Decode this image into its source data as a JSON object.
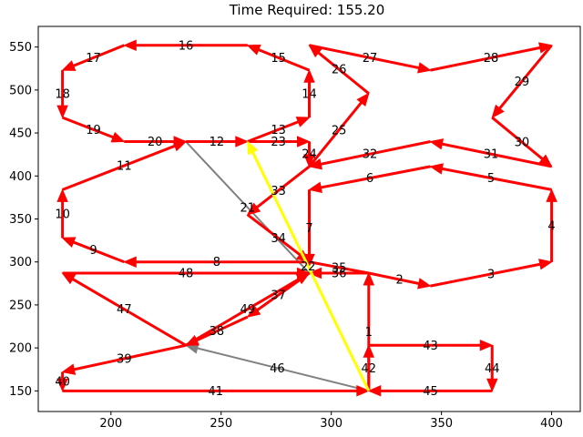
{
  "chart_data": {
    "type": "line",
    "title": "Time Required: 155.20",
    "xlabel": "",
    "ylabel": "",
    "xlim": [
      167,
      413
    ],
    "ylim": [
      126,
      574
    ],
    "xticks": [
      200,
      250,
      300,
      350,
      400
    ],
    "yticks": [
      150,
      200,
      250,
      300,
      350,
      400,
      450,
      500,
      550
    ],
    "grid": false,
    "edges": [
      {
        "label": "1",
        "from": [
          317,
          150
        ],
        "to": [
          317,
          287
        ],
        "color": "#ff0000",
        "arrow": true
      },
      {
        "label": "2",
        "from": [
          317,
          287
        ],
        "to": [
          345,
          272
        ],
        "color": "#ff0000",
        "arrow": true
      },
      {
        "label": "3",
        "from": [
          345,
          272
        ],
        "to": [
          400,
          300
        ],
        "color": "#ff0000",
        "arrow": true
      },
      {
        "label": "4",
        "from": [
          400,
          300
        ],
        "to": [
          400,
          384
        ],
        "color": "#ff0000",
        "arrow": true
      },
      {
        "label": "5",
        "from": [
          400,
          384
        ],
        "to": [
          345,
          411
        ],
        "color": "#ff0000",
        "arrow": true
      },
      {
        "label": "6",
        "from": [
          345,
          411
        ],
        "to": [
          290,
          384
        ],
        "color": "#ff0000",
        "arrow": true
      },
      {
        "label": "7",
        "from": [
          290,
          384
        ],
        "to": [
          290,
          295
        ],
        "color": "#ff0000",
        "arrow": true
      },
      {
        "label": "8",
        "from": [
          290,
          300
        ],
        "to": [
          206,
          300
        ],
        "color": "#ff0000",
        "arrow": true
      },
      {
        "label": "9",
        "from": [
          206,
          300
        ],
        "to": [
          178,
          328
        ],
        "color": "#ff0000",
        "arrow": true
      },
      {
        "label": "10",
        "from": [
          178,
          328
        ],
        "to": [
          178,
          384
        ],
        "color": "#ff0000",
        "arrow": true
      },
      {
        "label": "11",
        "from": [
          178,
          384
        ],
        "to": [
          234,
          440
        ],
        "color": "#ff0000",
        "arrow": true
      },
      {
        "label": "12",
        "from": [
          234,
          440
        ],
        "to": [
          262,
          440
        ],
        "color": "#ff0000",
        "arrow": true
      },
      {
        "label": "13",
        "from": [
          262,
          440
        ],
        "to": [
          290,
          468
        ],
        "color": "#ff0000",
        "arrow": true
      },
      {
        "label": "14",
        "from": [
          290,
          468
        ],
        "to": [
          290,
          523
        ],
        "color": "#ff0000",
        "arrow": true
      },
      {
        "label": "15",
        "from": [
          290,
          523
        ],
        "to": [
          262,
          552
        ],
        "color": "#ff0000",
        "arrow": true
      },
      {
        "label": "16",
        "from": [
          262,
          552
        ],
        "to": [
          206,
          552
        ],
        "color": "#ff0000",
        "arrow": true
      },
      {
        "label": "17",
        "from": [
          206,
          552
        ],
        "to": [
          178,
          523
        ],
        "color": "#ff0000",
        "arrow": true
      },
      {
        "label": "18",
        "from": [
          178,
          523
        ],
        "to": [
          178,
          468
        ],
        "color": "#ff0000",
        "arrow": true
      },
      {
        "label": "19",
        "from": [
          178,
          468
        ],
        "to": [
          206,
          440
        ],
        "color": "#ff0000",
        "arrow": true
      },
      {
        "label": "20",
        "from": [
          206,
          440
        ],
        "to": [
          234,
          440
        ],
        "color": "#ff0000",
        "arrow": true
      },
      {
        "label": "21",
        "from": [
          234,
          440
        ],
        "to": [
          290,
          287
        ],
        "color": "#808080",
        "arrow": false
      },
      {
        "label": "22",
        "from": [
          317,
          150
        ],
        "to": [
          262,
          440
        ],
        "color": "#ffff00",
        "arrow": true
      },
      {
        "label": "23",
        "from": [
          262,
          440
        ],
        "to": [
          290,
          440
        ],
        "color": "#ff0000",
        "arrow": true
      },
      {
        "label": "24",
        "from": [
          290,
          440
        ],
        "to": [
          290,
          411
        ],
        "color": "#ff0000",
        "arrow": true
      },
      {
        "label": "25",
        "from": [
          290,
          411
        ],
        "to": [
          317,
          496
        ],
        "color": "#ff0000",
        "arrow": true
      },
      {
        "label": "26",
        "from": [
          317,
          496
        ],
        "to": [
          290,
          552
        ],
        "color": "#ff0000",
        "arrow": true
      },
      {
        "label": "27",
        "from": [
          290,
          552
        ],
        "to": [
          345,
          523
        ],
        "color": "#ff0000",
        "arrow": true
      },
      {
        "label": "28",
        "from": [
          345,
          523
        ],
        "to": [
          400,
          552
        ],
        "color": "#ff0000",
        "arrow": true
      },
      {
        "label": "29",
        "from": [
          400,
          552
        ],
        "to": [
          373,
          468
        ],
        "color": "#ff0000",
        "arrow": true
      },
      {
        "label": "30",
        "from": [
          373,
          468
        ],
        "to": [
          400,
          411
        ],
        "color": "#ff0000",
        "arrow": true
      },
      {
        "label": "31",
        "from": [
          400,
          411
        ],
        "to": [
          345,
          440
        ],
        "color": "#ff0000",
        "arrow": true
      },
      {
        "label": "32",
        "from": [
          345,
          440
        ],
        "to": [
          290,
          411
        ],
        "color": "#ff0000",
        "arrow": true
      },
      {
        "label": "33",
        "from": [
          290,
          411
        ],
        "to": [
          262,
          355
        ],
        "color": "#ff0000",
        "arrow": true
      },
      {
        "label": "34",
        "from": [
          262,
          355
        ],
        "to": [
          290,
          300
        ],
        "color": "#ff0000",
        "arrow": true
      },
      {
        "label": "35",
        "from": [
          290,
          300
        ],
        "to": [
          317,
          287
        ],
        "color": "#ff0000",
        "arrow": false
      },
      {
        "label": "36",
        "from": [
          317,
          287
        ],
        "to": [
          290,
          287
        ],
        "color": "#ff0000",
        "arrow": true
      },
      {
        "label": "37",
        "from": [
          290,
          287
        ],
        "to": [
          262,
          236
        ],
        "color": "#ff0000",
        "arrow": true
      },
      {
        "label": "38",
        "from": [
          262,
          236
        ],
        "to": [
          234,
          203
        ],
        "color": "#ff0000",
        "arrow": true
      },
      {
        "label": "39",
        "from": [
          234,
          203
        ],
        "to": [
          178,
          172
        ],
        "color": "#ff0000",
        "arrow": true
      },
      {
        "label": "40",
        "from": [
          178,
          172
        ],
        "to": [
          178,
          150
        ],
        "color": "#ff0000",
        "arrow": true
      },
      {
        "label": "41",
        "from": [
          178,
          150
        ],
        "to": [
          317,
          150
        ],
        "color": "#ff0000",
        "arrow": true
      },
      {
        "label": "42",
        "from": [
          317,
          150
        ],
        "to": [
          317,
          203
        ],
        "color": "#ff0000",
        "arrow": true
      },
      {
        "label": "43",
        "from": [
          317,
          203
        ],
        "to": [
          373,
          203
        ],
        "color": "#ff0000",
        "arrow": true
      },
      {
        "label": "44",
        "from": [
          373,
          203
        ],
        "to": [
          373,
          150
        ],
        "color": "#ff0000",
        "arrow": true
      },
      {
        "label": "45",
        "from": [
          373,
          150
        ],
        "to": [
          317,
          150
        ],
        "color": "#ff0000",
        "arrow": true
      },
      {
        "label": "46",
        "from": [
          317,
          150
        ],
        "to": [
          234,
          203
        ],
        "color": "#808080",
        "arrow": true
      },
      {
        "label": "47",
        "from": [
          234,
          203
        ],
        "to": [
          178,
          287
        ],
        "color": "#ff0000",
        "arrow": true
      },
      {
        "label": "48",
        "from": [
          178,
          287
        ],
        "to": [
          290,
          287
        ],
        "color": "#ff0000",
        "arrow": true
      },
      {
        "label": "49",
        "from": [
          234,
          203
        ],
        "to": [
          290,
          287
        ],
        "color": "#ff0000",
        "arrow": true
      }
    ]
  }
}
